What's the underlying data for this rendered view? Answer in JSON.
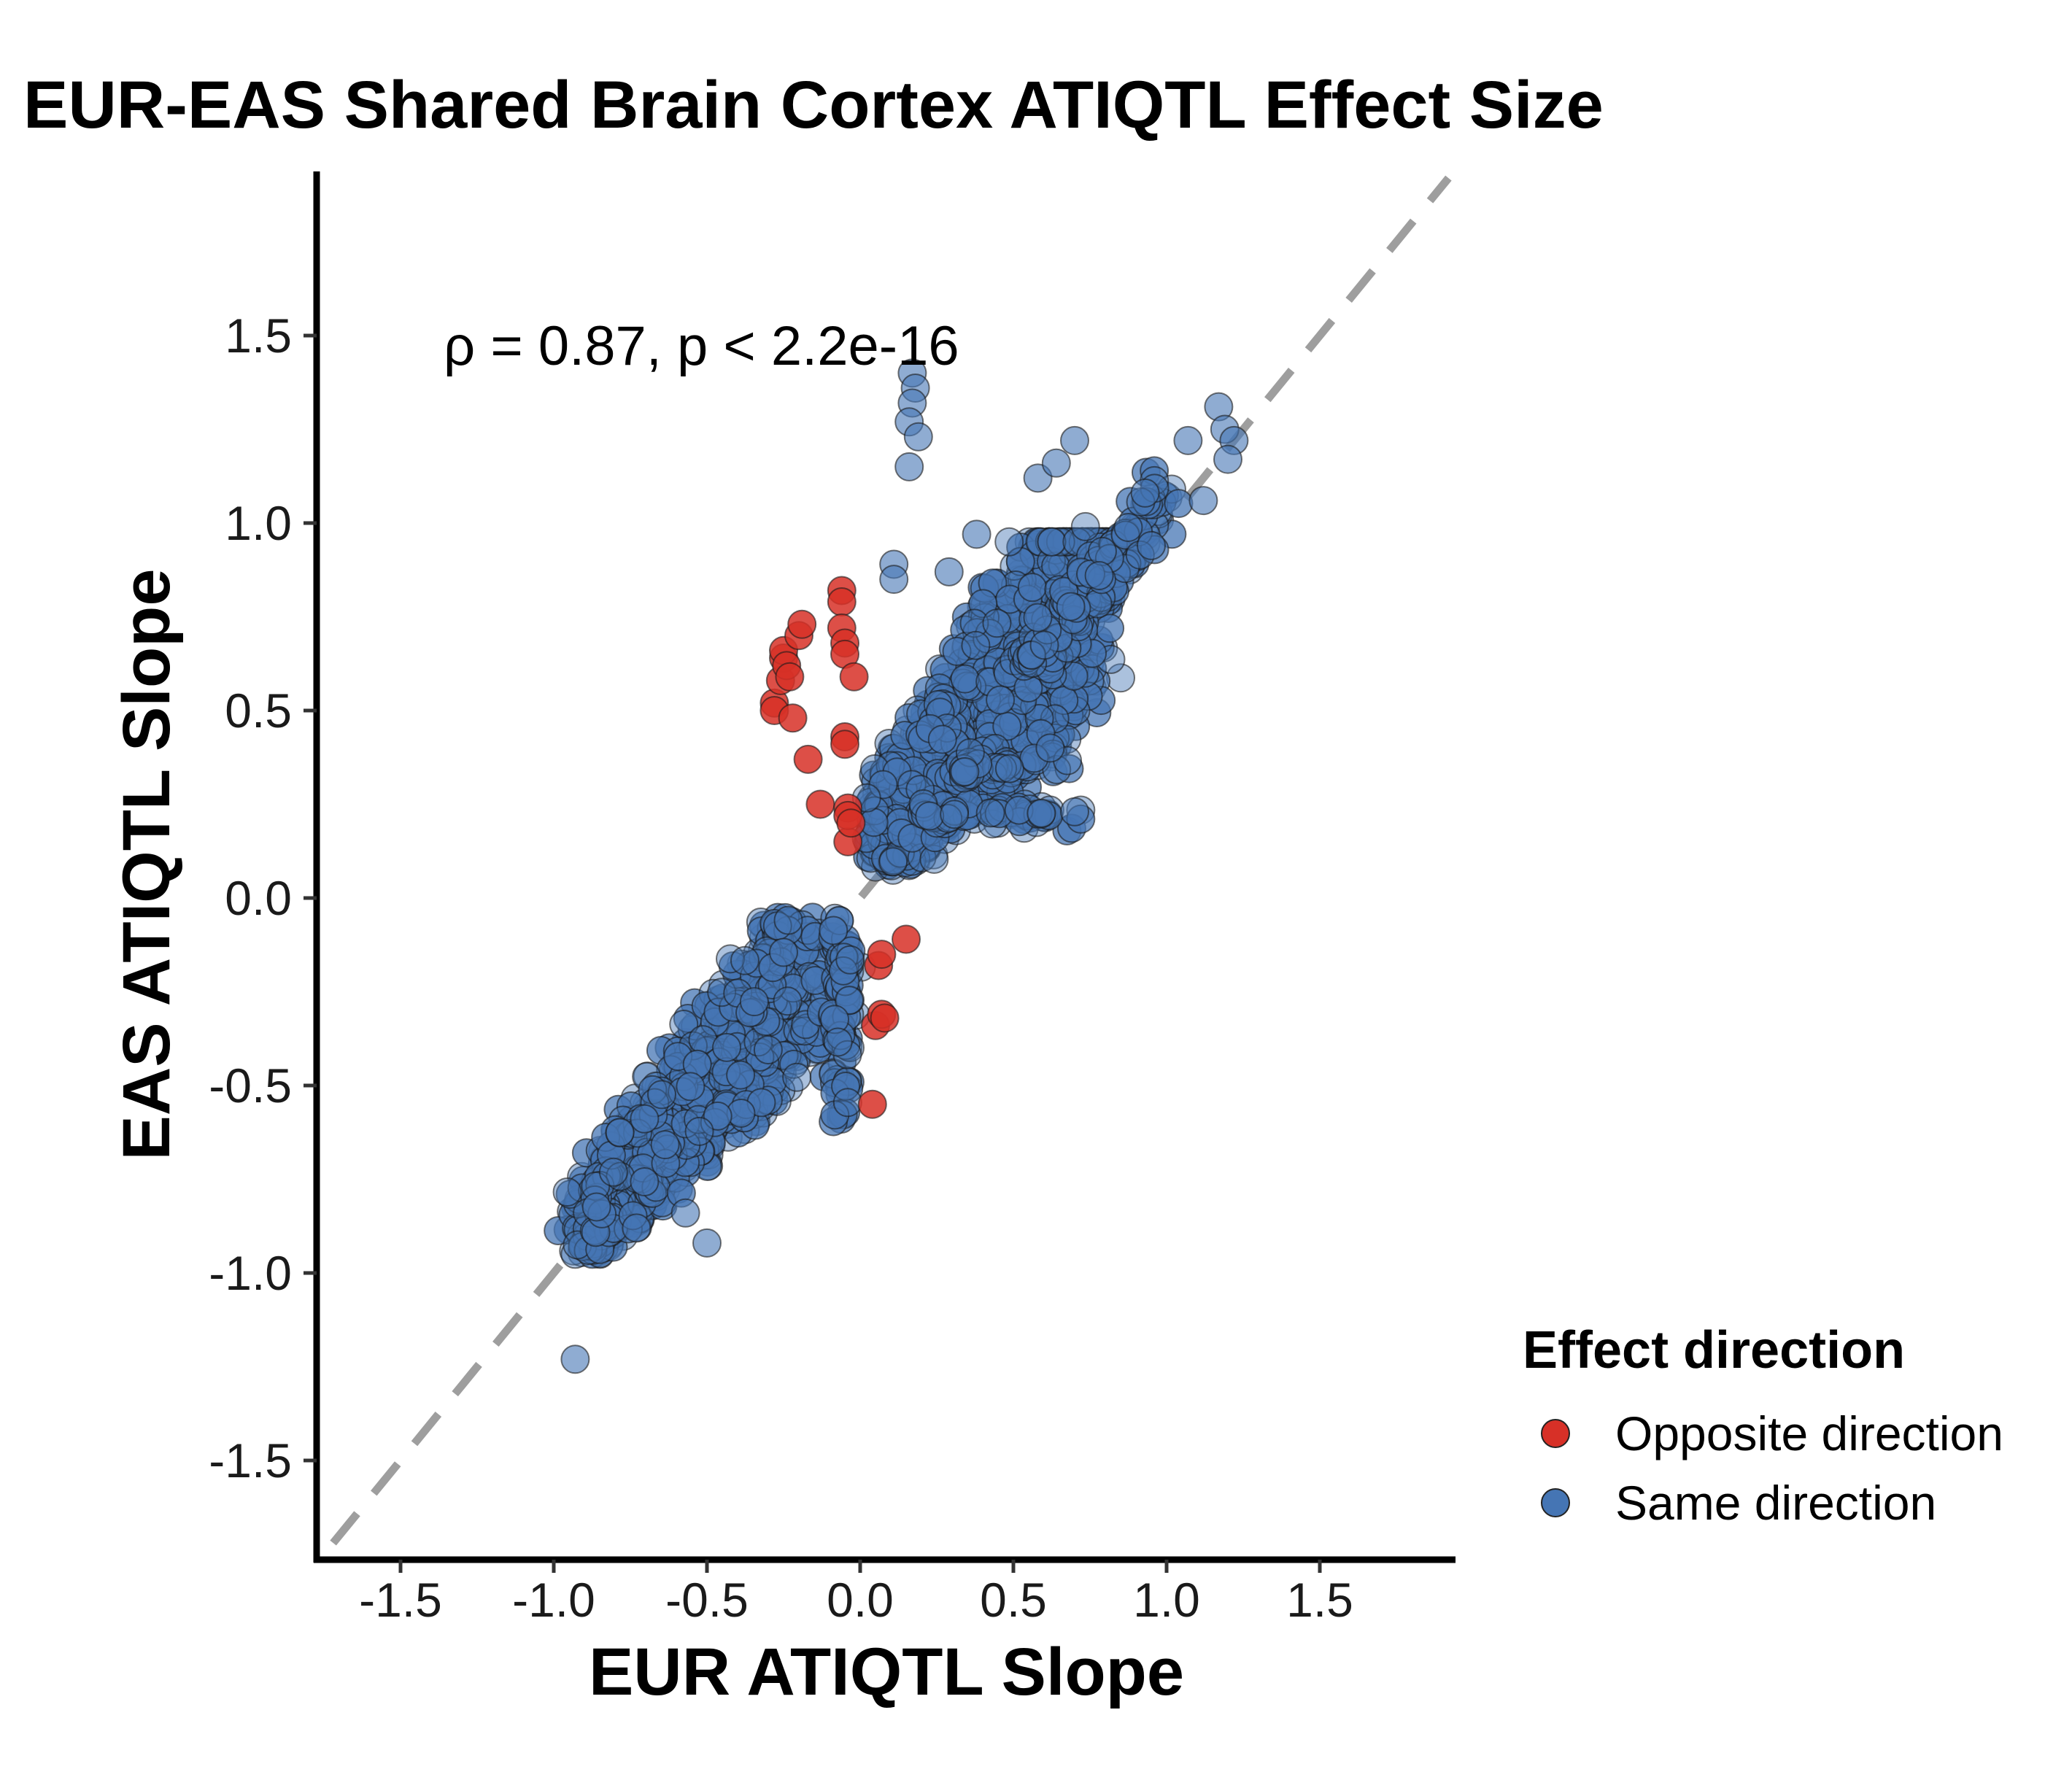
{
  "chart_data": {
    "type": "scatter",
    "title": "EUR-EAS Shared Brain Cortex ATIQTL Effect Size",
    "xlabel": "EUR ATIQTL Slope",
    "ylabel": "EAS ATIQTL Slope",
    "xlim": [
      -1.75,
      1.95
    ],
    "ylim": [
      -1.75,
      1.95
    ],
    "x_ticks": [
      "-1.5",
      "-1.0",
      "-0.5",
      "0.0",
      "0.5",
      "1.0",
      "1.5"
    ],
    "y_ticks": [
      "-1.5",
      "-1.0",
      "-0.5",
      "0.0",
      "0.5",
      "1.0",
      "1.5"
    ],
    "grid": false,
    "reference_line": "y = x (dashed, grey)",
    "annotation": "ρ = 0.87, p < 2.2e-16",
    "legend": {
      "title": "Effect direction",
      "placement": "right",
      "entries": [
        {
          "label": "Opposite direction",
          "color": "#d73027"
        },
        {
          "label": "Same direction",
          "color": "#4575b4"
        }
      ]
    },
    "series": [
      {
        "name": "Opposite direction",
        "color": "#d73027",
        "points": [
          [
            -0.28,
            0.52
          ],
          [
            -0.28,
            0.5
          ],
          [
            -0.26,
            0.58
          ],
          [
            -0.25,
            0.64
          ],
          [
            -0.25,
            0.66
          ],
          [
            -0.24,
            0.62
          ],
          [
            -0.23,
            0.59
          ],
          [
            -0.22,
            0.48
          ],
          [
            -0.2,
            0.7
          ],
          [
            -0.19,
            0.73
          ],
          [
            -0.17,
            0.37
          ],
          [
            -0.13,
            0.25
          ],
          [
            -0.06,
            0.82
          ],
          [
            -0.06,
            0.79
          ],
          [
            -0.06,
            0.72
          ],
          [
            -0.05,
            0.68
          ],
          [
            -0.05,
            0.65
          ],
          [
            -0.05,
            0.43
          ],
          [
            -0.05,
            0.41
          ],
          [
            -0.04,
            0.15
          ],
          [
            -0.04,
            0.24
          ],
          [
            -0.04,
            0.22
          ],
          [
            -0.03,
            0.2
          ],
          [
            -0.02,
            0.59
          ],
          [
            0.04,
            -0.55
          ],
          [
            0.05,
            -0.34
          ],
          [
            0.06,
            -0.18
          ],
          [
            0.07,
            -0.15
          ],
          [
            0.07,
            -0.31
          ],
          [
            0.08,
            -0.32
          ],
          [
            0.15,
            -0.11
          ]
        ]
      },
      {
        "name": "Same direction",
        "color": "#4575b4",
        "note": "dense clusters; outlier points listed, clusters summarized by bounds",
        "outliers": [
          [
            -0.93,
            -1.23
          ],
          [
            0.17,
            1.4
          ],
          [
            0.18,
            1.36
          ],
          [
            0.17,
            1.32
          ],
          [
            0.16,
            1.27
          ],
          [
            0.19,
            1.23
          ],
          [
            0.16,
            1.15
          ],
          [
            0.58,
            1.12
          ],
          [
            0.64,
            1.16
          ],
          [
            0.7,
            1.22
          ],
          [
            1.07,
            1.22
          ],
          [
            1.17,
            1.31
          ],
          [
            1.19,
            1.25
          ],
          [
            1.22,
            1.22
          ],
          [
            1.2,
            1.17
          ],
          [
            0.11,
            0.89
          ],
          [
            0.11,
            0.85
          ],
          [
            0.29,
            0.87
          ],
          [
            0.38,
            0.97
          ],
          [
            1.12,
            1.06
          ],
          [
            0.93,
            1.08
          ],
          [
            0.95,
            0.94
          ],
          [
            0.62,
            0.4
          ],
          [
            0.7,
            0.23
          ],
          [
            0.78,
            0.86
          ],
          [
            -0.5,
            -0.92
          ],
          [
            -0.57,
            -0.84
          ],
          [
            -0.73,
            -0.88
          ]
        ],
        "clusters": [
          {
            "x_range": [
              0.05,
              0.85
            ],
            "y_range": [
              0.07,
              0.95
            ]
          },
          {
            "x_range": [
              0.75,
              1.0
            ],
            "y_range": [
              0.7,
              1.1
            ]
          },
          {
            "x_range": [
              -0.95,
              -0.05
            ],
            "y_range": [
              -0.95,
              -0.05
            ]
          }
        ]
      }
    ]
  }
}
